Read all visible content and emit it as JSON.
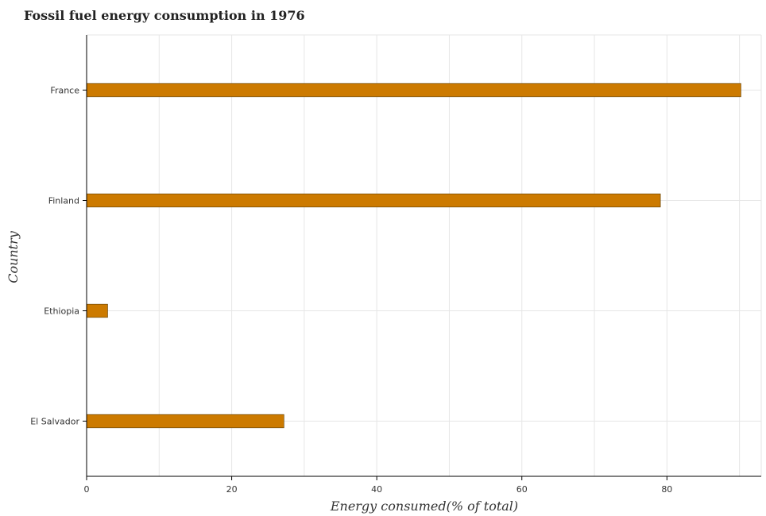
{
  "chart_data": {
    "type": "bar",
    "orientation": "horizontal",
    "title": "Fossil fuel energy consumption in 1976",
    "xlabel": "Energy consumed(% of total)",
    "ylabel": "Country",
    "categories": [
      "El Salvador",
      "Ethiopia",
      "Finland",
      "France"
    ],
    "values": [
      27.2,
      2.9,
      79.1,
      90.2
    ],
    "xlim": [
      0,
      93
    ],
    "xticks": [
      0,
      20,
      40,
      60,
      80
    ],
    "grid": true,
    "bar_color": "#cc7a00"
  }
}
